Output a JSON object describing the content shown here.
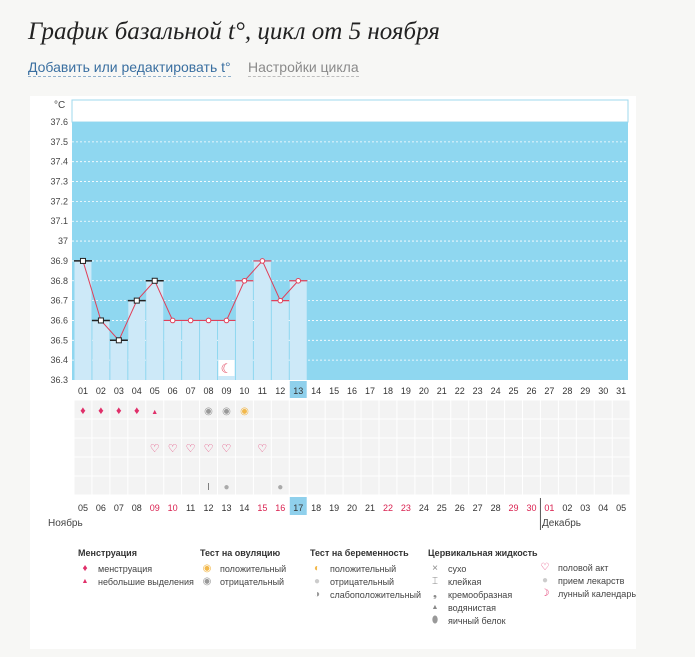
{
  "header": {
    "title": "График базальной t°, цикл от 5 ноября",
    "link_edit": "Добавить или редактировать t°",
    "link_settings": "Настройки цикла"
  },
  "colors": {
    "chart_bg": "#8fd7f0",
    "column_fill": "#cde9f8",
    "line": "#e0405a",
    "today": "#8fd0ec",
    "weekend": "#d9204f"
  },
  "chart_data": {
    "type": "line",
    "ylabel": "°C",
    "ylim": [
      36.3,
      37.6
    ],
    "y_ticks": [
      "37.6",
      "37.5",
      "37.4",
      "37.3",
      "37.2",
      "37.1",
      "37",
      "36.9",
      "36.8",
      "36.7",
      "36.6",
      "36.5",
      "36.4",
      "36.3"
    ],
    "cycle_days": [
      "01",
      "02",
      "03",
      "04",
      "05",
      "06",
      "07",
      "08",
      "09",
      "10",
      "11",
      "12",
      "13",
      "14",
      "15",
      "16",
      "17",
      "18",
      "19",
      "20",
      "21",
      "22",
      "23",
      "24",
      "25",
      "26",
      "27",
      "28",
      "29",
      "30",
      "31"
    ],
    "today_cycle_day": "13",
    "series": [
      {
        "name": "Базальная температура",
        "x": [
          1,
          2,
          3,
          4,
          5,
          6,
          7,
          8,
          9,
          10,
          11,
          12,
          13
        ],
        "values": [
          36.9,
          36.6,
          36.5,
          36.7,
          36.8,
          36.6,
          36.6,
          36.6,
          36.6,
          36.8,
          36.9,
          36.7,
          36.8
        ]
      }
    ],
    "marker_types": [
      "square",
      "square",
      "square",
      "square",
      "square",
      "circle",
      "circle",
      "circle",
      "circle",
      "circle",
      "circle",
      "circle",
      "circle"
    ],
    "moon_day": 9,
    "dates": [
      "05",
      "06",
      "07",
      "08",
      "09",
      "10",
      "11",
      "12",
      "13",
      "14",
      "15",
      "16",
      "17",
      "18",
      "19",
      "20",
      "21",
      "22",
      "23",
      "24",
      "25",
      "26",
      "27",
      "28",
      "29",
      "30",
      "01",
      "02",
      "03",
      "04",
      "05"
    ],
    "weekend_indices": [
      4,
      5,
      10,
      11,
      17,
      18,
      24,
      25,
      26
    ],
    "today_date_index": 12,
    "month_labels": {
      "first": "Ноябрь",
      "second": "Декабрь"
    },
    "menstruation_days": [
      1,
      2,
      3,
      4
    ],
    "light_discharge_days": [
      5
    ],
    "ovulation_negative_days": [
      8,
      9
    ],
    "ovulation_positive_days": [
      10
    ],
    "intercourse_days": [
      5,
      6,
      7,
      8,
      9,
      11
    ],
    "sticky_days": [
      8
    ],
    "egg_white_days": [
      9,
      12
    ]
  },
  "legend": {
    "menstruation": {
      "title": "Менструация",
      "items": [
        "менструация",
        "небольшие выделения"
      ]
    },
    "ovulation_test": {
      "title": "Тест на овуляцию",
      "items": [
        "положительный",
        "отрицательный"
      ]
    },
    "pregnancy_test": {
      "title": "Тест на беременность",
      "items": [
        "положительный",
        "отрицательный",
        "слабоположительный"
      ]
    },
    "cervical": {
      "title": "Цервикальная жидкость",
      "items": [
        "сухо",
        "клейкая",
        "кремообразная",
        "водянистая",
        "яичный белок"
      ]
    },
    "other": {
      "items": [
        "половой акт",
        "прием лекарств",
        "лунный календарь"
      ]
    }
  }
}
